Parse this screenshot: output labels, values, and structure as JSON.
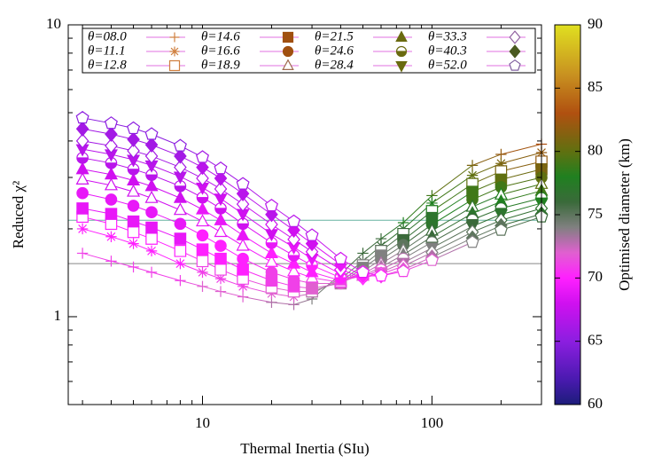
{
  "chart_data": {
    "type": "scatter",
    "xlabel": "Thermal Inertia (SIu)",
    "ylabel": "Reduced χ²",
    "xscale": "log",
    "yscale": "log",
    "xlim": [
      2.6,
      300
    ],
    "ylim": [
      0.5,
      10
    ],
    "xticks": [
      10,
      100
    ],
    "yticks": [
      1,
      10
    ],
    "xminorticks": [
      3,
      4,
      5,
      6,
      7,
      8,
      9,
      20,
      30,
      40,
      50,
      60,
      70,
      80,
      90,
      200,
      300
    ],
    "yminorticks": [
      0.5,
      0.6,
      0.7,
      0.8,
      0.9,
      2,
      3,
      4,
      5,
      6,
      7,
      8,
      9
    ],
    "hlines": [
      {
        "value": 2.14,
        "color": "#66b2a0"
      },
      {
        "value": 1.52,
        "color": "#888888"
      }
    ],
    "colorbar": {
      "label": "Optimised diameter (km)",
      "lim": [
        60,
        90
      ],
      "ticks": [
        60,
        65,
        70,
        75,
        80,
        85,
        90
      ],
      "stops": [
        [
          60,
          "#1c1c7a"
        ],
        [
          62,
          "#4a1ab0"
        ],
        [
          65,
          "#8c1ee0"
        ],
        [
          68,
          "#d010f0"
        ],
        [
          70,
          "#ff20ff"
        ],
        [
          72,
          "#e060d0"
        ],
        [
          74,
          "#808080"
        ],
        [
          76,
          "#3a6a3a"
        ],
        [
          78,
          "#208020"
        ],
        [
          80,
          "#607010"
        ],
        [
          83,
          "#b05010"
        ],
        [
          86,
          "#c89020"
        ],
        [
          90,
          "#e0e020"
        ]
      ]
    },
    "legend_line_color": "#e070e0",
    "x": [
      3,
      4,
      5,
      6,
      8,
      10,
      12,
      15,
      20,
      25,
      30,
      40,
      50,
      60,
      75,
      100,
      150,
      200,
      300
    ],
    "series": [
      {
        "name": "θ=08.0",
        "marker": "plus",
        "filled": false,
        "color": "#d08040",
        "values": [
          1.65,
          1.55,
          1.48,
          1.42,
          1.33,
          1.27,
          1.22,
          1.17,
          1.12,
          1.1,
          1.15,
          1.4,
          1.65,
          1.85,
          2.1,
          2.6,
          3.3,
          3.6,
          3.9
        ],
        "diameters": [
          71,
          71,
          71,
          71,
          71,
          72,
          72,
          72,
          73,
          73,
          74,
          75,
          76,
          76,
          78,
          79,
          81,
          82,
          83
        ]
      },
      {
        "name": "θ=11.1",
        "marker": "asterisk",
        "filled": false,
        "color": "#d08040",
        "values": [
          2.0,
          1.88,
          1.78,
          1.68,
          1.52,
          1.42,
          1.35,
          1.27,
          1.2,
          1.17,
          1.2,
          1.35,
          1.55,
          1.75,
          2.0,
          2.45,
          3.05,
          3.35,
          3.65
        ],
        "diameters": [
          70,
          70,
          70,
          70,
          70,
          71,
          71,
          71,
          72,
          72,
          73,
          74,
          75,
          76,
          77,
          78,
          80,
          81,
          82
        ]
      },
      {
        "name": "θ=12.8",
        "marker": "square",
        "filled": false,
        "color": "#d08040",
        "values": [
          2.2,
          2.08,
          1.95,
          1.85,
          1.68,
          1.55,
          1.45,
          1.35,
          1.26,
          1.22,
          1.22,
          1.32,
          1.5,
          1.68,
          1.92,
          2.3,
          2.85,
          3.15,
          3.4
        ],
        "diameters": [
          70,
          70,
          70,
          70,
          70,
          71,
          71,
          71,
          72,
          72,
          73,
          74,
          74,
          75,
          76,
          78,
          80,
          81,
          82
        ]
      },
      {
        "name": "θ=14.6",
        "marker": "square",
        "filled": true,
        "color": "#a05010",
        "values": [
          2.35,
          2.25,
          2.12,
          2.02,
          1.85,
          1.7,
          1.58,
          1.45,
          1.33,
          1.27,
          1.25,
          1.3,
          1.47,
          1.62,
          1.83,
          2.18,
          2.68,
          2.95,
          3.2
        ],
        "diameters": [
          69,
          69,
          69,
          69,
          69,
          70,
          70,
          70,
          71,
          71,
          72,
          73,
          74,
          74,
          76,
          77,
          79,
          80,
          81
        ]
      },
      {
        "name": "θ=16.6",
        "marker": "circle",
        "filled": true,
        "color": "#a05010",
        "values": [
          2.65,
          2.52,
          2.4,
          2.28,
          2.08,
          1.9,
          1.75,
          1.58,
          1.42,
          1.34,
          1.3,
          1.3,
          1.43,
          1.57,
          1.76,
          2.07,
          2.52,
          2.78,
          3.0
        ],
        "diameters": [
          69,
          69,
          69,
          69,
          69,
          70,
          70,
          70,
          71,
          71,
          72,
          72,
          73,
          74,
          75,
          77,
          79,
          79,
          80
        ]
      },
      {
        "name": "θ=18.9",
        "marker": "triangle",
        "filled": false,
        "color": "#a06a50",
        "values": [
          2.95,
          2.82,
          2.68,
          2.55,
          2.32,
          2.12,
          1.95,
          1.75,
          1.54,
          1.43,
          1.36,
          1.31,
          1.4,
          1.52,
          1.69,
          1.97,
          2.38,
          2.62,
          2.85
        ],
        "diameters": [
          68,
          68,
          68,
          68,
          68,
          69,
          69,
          69,
          70,
          70,
          71,
          71,
          72,
          73,
          74,
          76,
          77,
          78,
          80
        ]
      },
      {
        "name": "θ=21.5",
        "marker": "triangle",
        "filled": true,
        "color": "#6a6a10",
        "values": [
          3.2,
          3.07,
          2.93,
          2.8,
          2.55,
          2.33,
          2.14,
          1.9,
          1.65,
          1.52,
          1.42,
          1.33,
          1.38,
          1.48,
          1.63,
          1.88,
          2.26,
          2.48,
          2.7
        ],
        "diameters": [
          68,
          68,
          68,
          68,
          68,
          69,
          69,
          69,
          70,
          70,
          70,
          71,
          72,
          73,
          74,
          76,
          77,
          78,
          79
        ]
      },
      {
        "name": "θ=24.6",
        "marker": "halfcircle",
        "filled": true,
        "color": "#6a6a10",
        "values": [
          3.5,
          3.36,
          3.2,
          3.06,
          2.8,
          2.56,
          2.35,
          2.08,
          1.79,
          1.62,
          1.5,
          1.36,
          1.37,
          1.45,
          1.58,
          1.8,
          2.15,
          2.35,
          2.55
        ],
        "diameters": [
          67,
          67,
          67,
          67,
          67,
          68,
          68,
          68,
          69,
          69,
          70,
          70,
          71,
          72,
          73,
          75,
          76,
          77,
          78
        ]
      },
      {
        "name": "θ=28.4",
        "marker": "downtriangle",
        "filled": true,
        "color": "#6a6a10",
        "values": [
          3.75,
          3.6,
          3.45,
          3.3,
          3.02,
          2.77,
          2.54,
          2.25,
          1.92,
          1.73,
          1.58,
          1.4,
          1.36,
          1.42,
          1.53,
          1.72,
          2.04,
          2.24,
          2.45
        ],
        "diameters": [
          67,
          67,
          67,
          67,
          67,
          68,
          68,
          68,
          68,
          69,
          69,
          70,
          71,
          72,
          73,
          74,
          76,
          77,
          78
        ]
      },
      {
        "name": "θ=33.3",
        "marker": "diamond",
        "filled": false,
        "color": "#9060a0",
        "values": [
          4.0,
          3.85,
          3.7,
          3.55,
          3.25,
          2.98,
          2.74,
          2.43,
          2.07,
          1.84,
          1.67,
          1.45,
          1.36,
          1.4,
          1.49,
          1.66,
          1.95,
          2.14,
          2.35
        ],
        "diameters": [
          66,
          66,
          66,
          66,
          66,
          67,
          67,
          67,
          68,
          68,
          68,
          69,
          70,
          71,
          72,
          74,
          75,
          76,
          77
        ]
      },
      {
        "name": "θ=40.3",
        "marker": "diamond",
        "filled": true,
        "color": "#4a5a20",
        "values": [
          4.4,
          4.22,
          4.05,
          3.88,
          3.55,
          3.25,
          2.98,
          2.64,
          2.24,
          1.98,
          1.78,
          1.51,
          1.38,
          1.38,
          1.45,
          1.6,
          1.86,
          2.05,
          2.25
        ],
        "diameters": [
          66,
          66,
          66,
          66,
          66,
          67,
          67,
          67,
          67,
          68,
          68,
          69,
          70,
          71,
          72,
          73,
          75,
          75,
          77
        ]
      },
      {
        "name": "θ=52.0",
        "marker": "pentagon",
        "filled": false,
        "color": "#8060a0",
        "values": [
          4.8,
          4.6,
          4.42,
          4.22,
          3.85,
          3.52,
          3.22,
          2.85,
          2.4,
          2.12,
          1.9,
          1.58,
          1.42,
          1.38,
          1.43,
          1.56,
          1.8,
          1.98,
          2.2
        ],
        "diameters": [
          65,
          65,
          65,
          65,
          65,
          66,
          66,
          66,
          67,
          67,
          67,
          68,
          69,
          70,
          71,
          72,
          74,
          75,
          76
        ]
      }
    ]
  }
}
